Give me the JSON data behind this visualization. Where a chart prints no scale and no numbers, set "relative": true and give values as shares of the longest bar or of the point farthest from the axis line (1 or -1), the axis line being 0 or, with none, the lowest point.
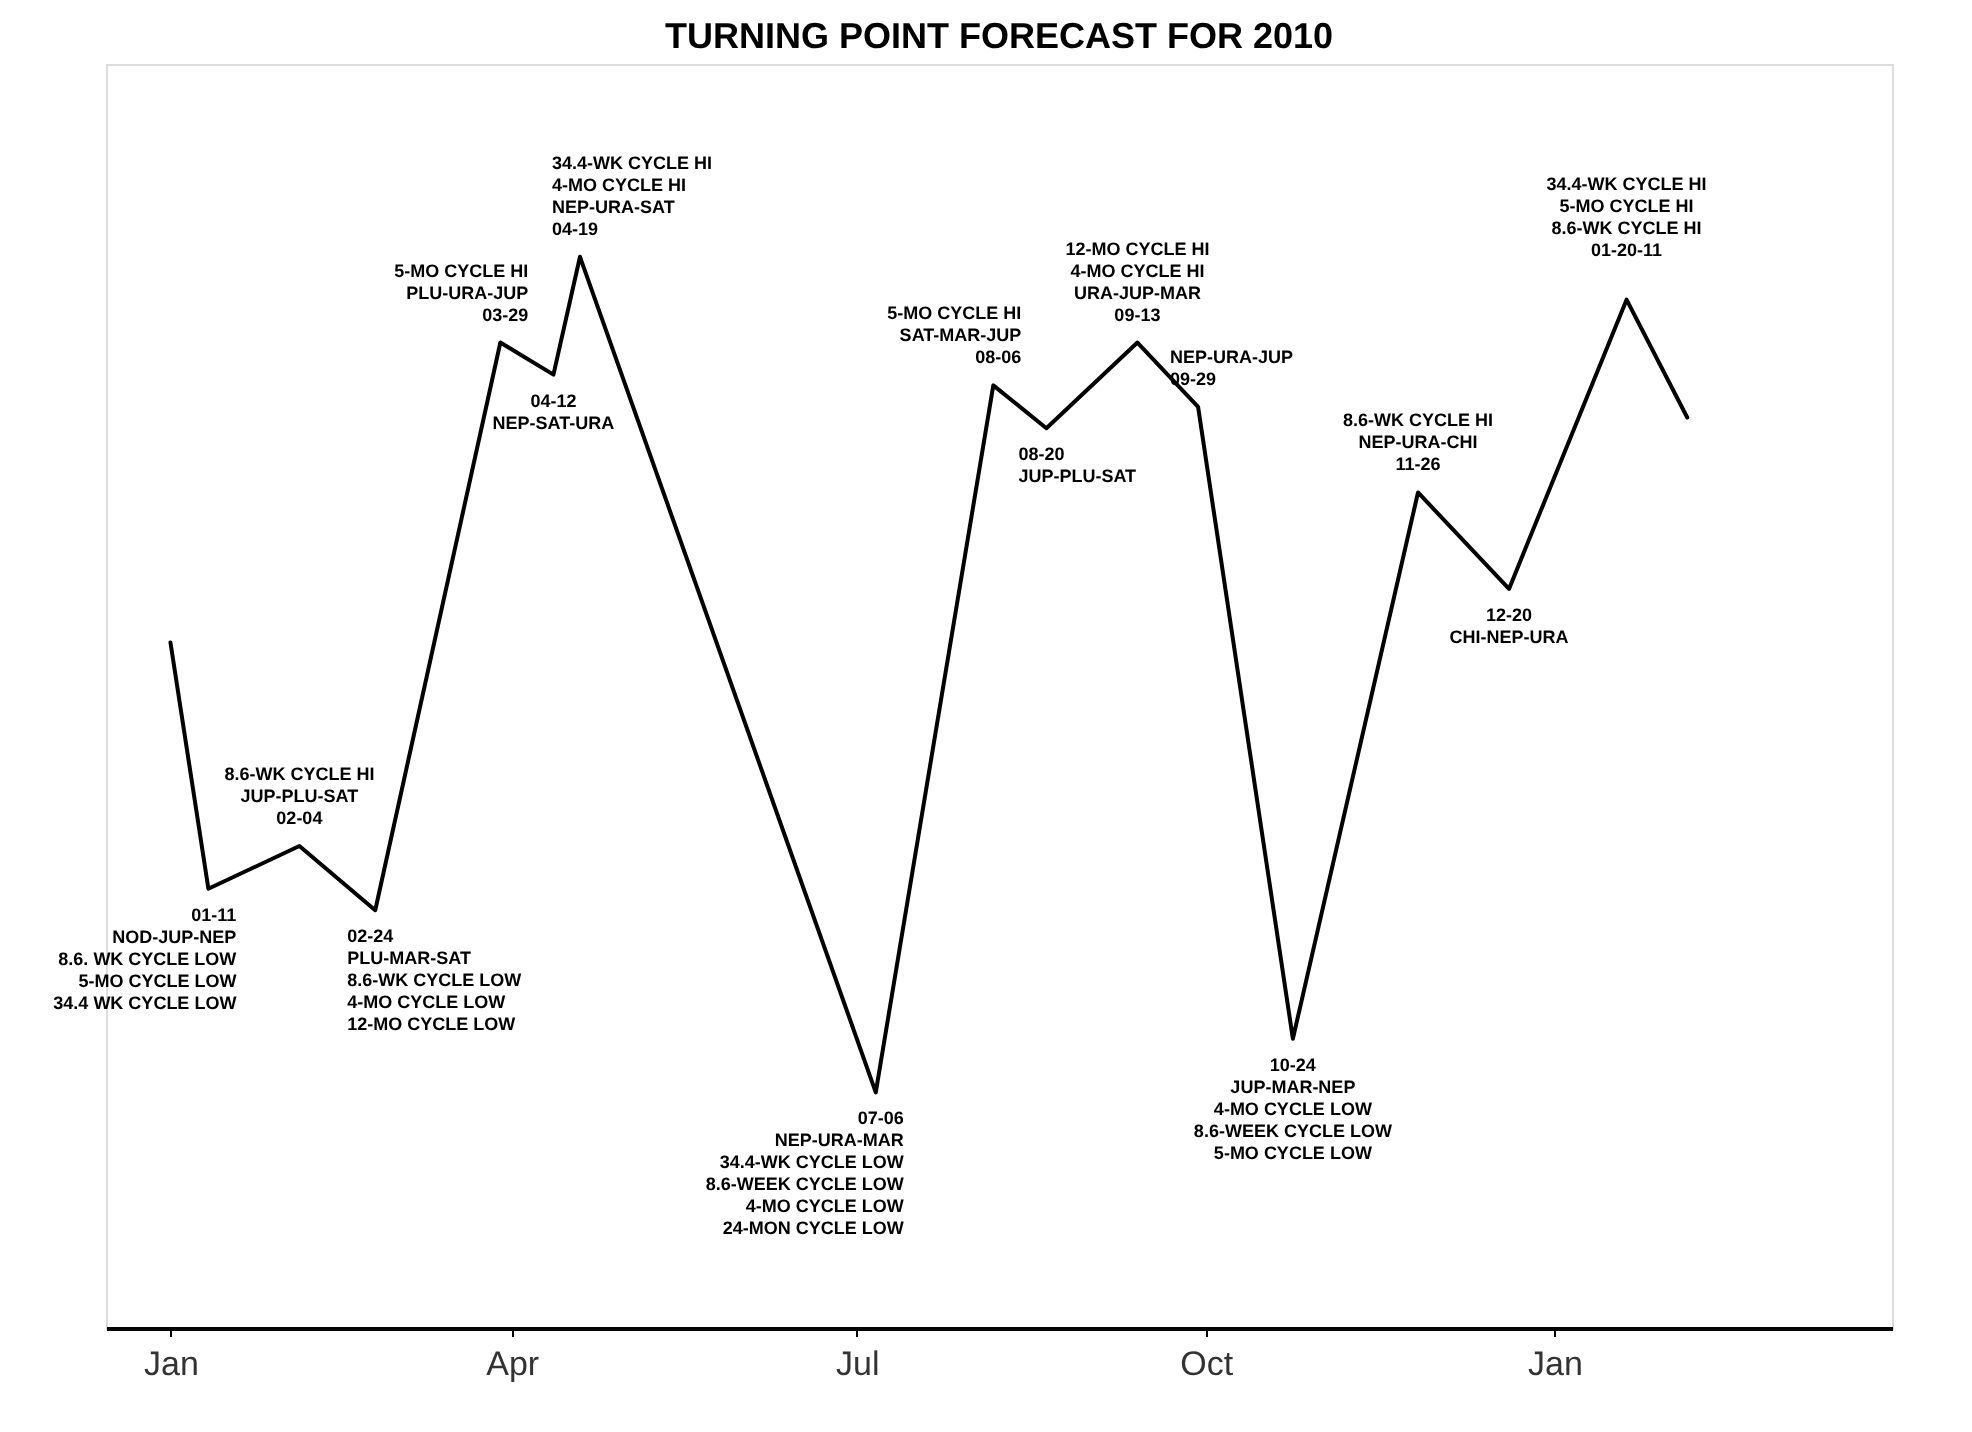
{
  "chart_data": {
    "type": "line",
    "title": "TURNING POINT FORECAST FOR 2010",
    "relative": true,
    "x": [
      "2010-01-01",
      "2010-01-11",
      "2010-02-04",
      "2010-02-24",
      "2010-03-29",
      "2010-04-12",
      "2010-04-19",
      "2010-07-06",
      "2010-08-06",
      "2010-08-20",
      "2010-09-13",
      "2010-09-29",
      "2010-10-24",
      "2010-11-26",
      "2010-12-20",
      "2011-01-20",
      "2011-02-05"
    ],
    "line_style": "solid",
    "series": [
      {
        "color": "#000000",
        "values": [
          0.64,
          0.41,
          0.45,
          0.39,
          0.92,
          0.89,
          1,
          0.22,
          0.88,
          0.84,
          0.92,
          0.86,
          0.27,
          0.78,
          0.69,
          0.96,
          0.85
        ]
      }
    ],
    "xlim": [
      "2009-12-15",
      "2011-03-31"
    ],
    "xticks": [
      {
        "value": "2010-01-01",
        "label": "Jan"
      },
      {
        "value": "2010-04-01",
        "label": "Apr"
      },
      {
        "value": "2010-07-01",
        "label": "Jul"
      },
      {
        "value": "2010-10-01",
        "label": "Oct"
      },
      {
        "value": "2011-01-01",
        "label": "Jan"
      }
    ],
    "annotations": [
      {
        "text": "01-11\nNOD-JUP-NEP\n\n8.6. WK CYCLE  LOW\n5-MO CYCLE LOW\n34.4 WK CYCLE LOW",
        "x": "2010-01-11",
        "y": 0.41
      },
      {
        "text": "8.6-WK CYCLE HI\nJUP-PLU-SAT\n02-04",
        "x": "2010-02-04",
        "y": 0.45
      },
      {
        "text": "02-24\nPLU-MAR-SAT\n\n8.6-WK CYCLE LOW\n4-MO CYCLE LOW\n12-MO CYCLE LOW",
        "x": "2010-02-24",
        "y": 0.39
      },
      {
        "text": "5-MO CYCLE HI\nPLU-URA-JUP\n03-29",
        "x": "2010-03-29",
        "y": 0.92
      },
      {
        "text": "04-12\nNEP-SAT-URA",
        "x": "2010-04-12",
        "y": 0.89
      },
      {
        "text": "34.4-WK CYCLE HI\n4-MO CYCLE HI\nNEP-URA-SAT\n04-19",
        "x": "2010-04-19",
        "y": 1
      },
      {
        "text": "07-06\nNEP-URA-MAR\n\n34.4-WK CYCLE LOW\n8.6-WEEK CYCLE LOW\n4-MO CYCLE LOW\n24-MON CYCLE LOW",
        "x": "2010-07-06",
        "y": 0.22
      },
      {
        "text": "5-MO CYCLE HI\nSAT-MAR-JUP\n08-06",
        "x": "2010-08-06",
        "y": 0.88
      },
      {
        "text": "08-20\nJUP-PLU-SAT",
        "x": "2010-08-20",
        "y": 0.84
      },
      {
        "text": "12-MO CYCLE HI\n4-MO CYCLE HI\nURA-JUP-MAR\n09-13",
        "x": "2010-09-13",
        "y": 0.92
      },
      {
        "text": "NEP-URA-JUP\n09-29",
        "x": "2010-09-29",
        "y": 0.86
      },
      {
        "text": "10-24\nJUP-MAR-NEP\n\n4-MO CYCLE LOW\n8.6-WEEK CYCLE LOW\n5-MO CYCLE LOW",
        "x": "2010-10-24",
        "y": 0.27
      },
      {
        "text": "8.6-WK CYCLE HI\nNEP-URA-CHI\n11-26",
        "x": "2010-11-26",
        "y": 0.78
      },
      {
        "text": "12-20\nCHI-NEP-URA",
        "x": "2010-12-20",
        "y": 0.69
      },
      {
        "text": "34.4-WK CYCLE HI\n5-MO CYCLE HI\n8.6-WK CYCLE HI\n\n01-20-11",
        "x": "2011-01-20",
        "y": 0.96
      }
    ]
  }
}
